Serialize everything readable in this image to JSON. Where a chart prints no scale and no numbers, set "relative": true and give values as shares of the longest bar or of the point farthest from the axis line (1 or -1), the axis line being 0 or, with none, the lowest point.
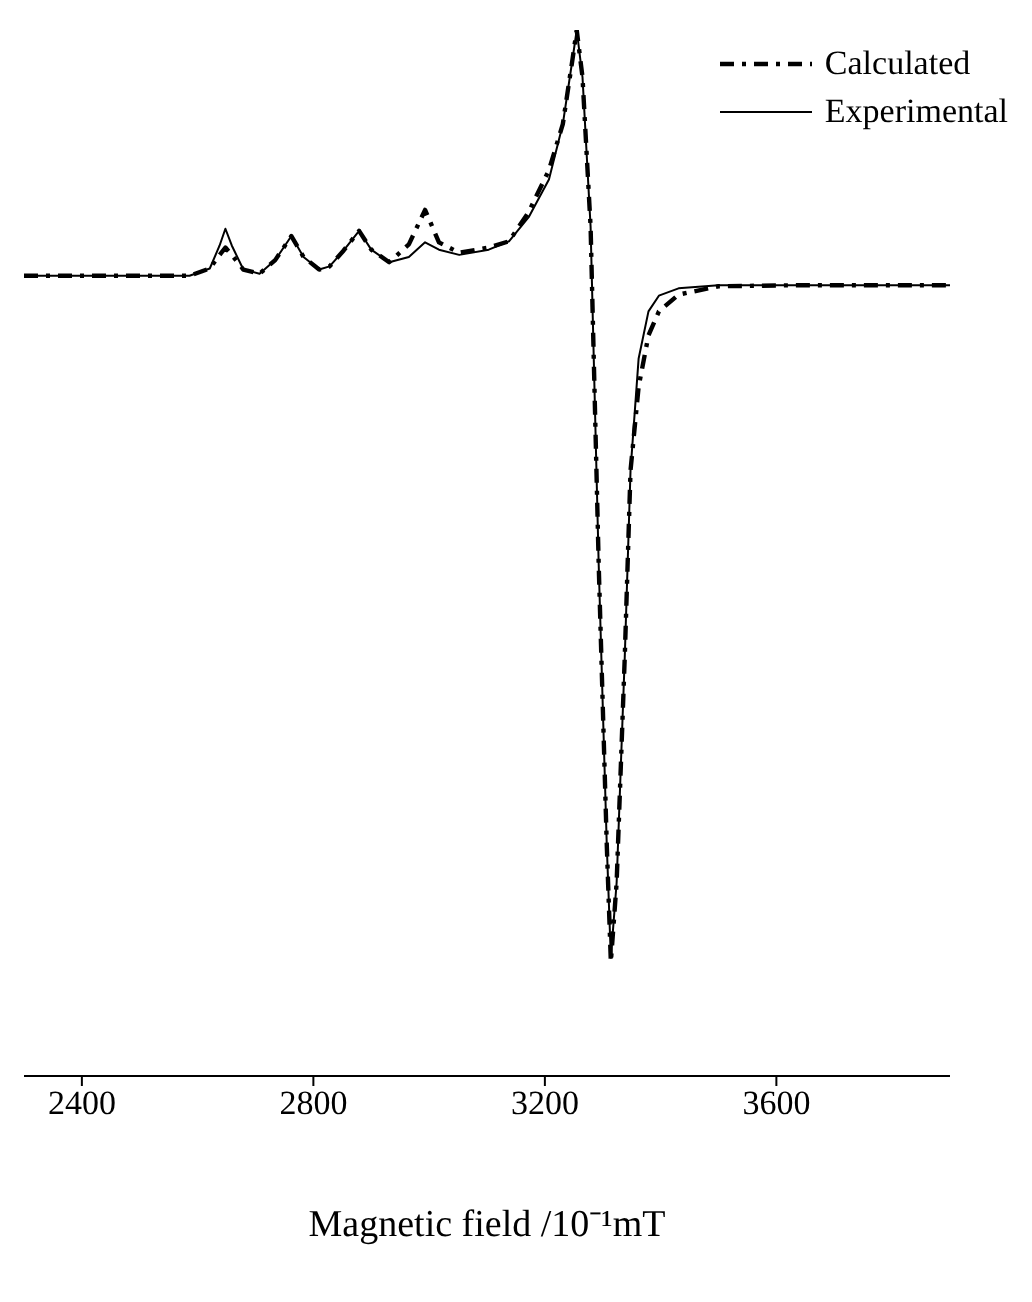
{
  "chart_data": {
    "type": "line",
    "relative": true,
    "xlabel": "Magnetic field /10⁻¹mT",
    "xlim": [
      2300,
      3900
    ],
    "xticks": [
      2400,
      2800,
      3200,
      3600
    ],
    "legend": "top right",
    "grid": false,
    "marker": "none",
    "x": [
      2300,
      2466,
      2586,
      2621,
      2638,
      2648,
      2659,
      2679,
      2707,
      2734,
      2762,
      2783,
      2810,
      2828,
      2852,
      2879,
      2900,
      2931,
      2965,
      2993,
      3017,
      3052,
      3103,
      3138,
      3172,
      3207,
      3231,
      3248,
      3255,
      3265,
      3279,
      3293,
      3307,
      3314,
      3324,
      3338,
      3348,
      3362,
      3379,
      3397,
      3431,
      3500,
      3638,
      3900
    ],
    "series": [
      {
        "name": "Calculated",
        "color": "#000000",
        "line_style": "dashed",
        "values": [
          0.765,
          0.765,
          0.765,
          0.772,
          0.785,
          0.792,
          0.785,
          0.771,
          0.767,
          0.78,
          0.803,
          0.783,
          0.771,
          0.774,
          0.789,
          0.808,
          0.79,
          0.778,
          0.795,
          0.828,
          0.797,
          0.787,
          0.792,
          0.798,
          0.826,
          0.866,
          0.91,
          0.973,
          1,
          0.955,
          0.812,
          0.489,
          0.22,
          0.109,
          0.185,
          0.4,
          0.579,
          0.659,
          0.708,
          0.731,
          0.747,
          0.755,
          0.756,
          0.756
        ]
      },
      {
        "name": "Experimental",
        "color": "#000000",
        "line_style": "solid",
        "values": [
          0.765,
          0.765,
          0.765,
          0.772,
          0.794,
          0.81,
          0.794,
          0.771,
          0.767,
          0.78,
          0.803,
          0.783,
          0.771,
          0.774,
          0.789,
          0.808,
          0.79,
          0.778,
          0.783,
          0.797,
          0.79,
          0.785,
          0.79,
          0.798,
          0.821,
          0.857,
          0.91,
          0.973,
          1,
          0.955,
          0.812,
          0.489,
          0.22,
          0.113,
          0.185,
          0.4,
          0.579,
          0.686,
          0.731,
          0.746,
          0.753,
          0.756,
          0.756,
          0.756
        ]
      }
    ]
  }
}
